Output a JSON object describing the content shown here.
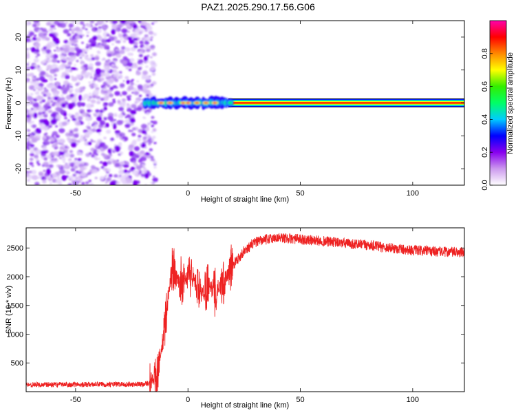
{
  "title": "PAZ1.2025.290.17.56.G06",
  "chart_data": [
    {
      "type": "heatmap",
      "name": "spectrogram",
      "xlabel": "Height of straight line (km)",
      "ylabel": "Frequency (Hz)",
      "xlim": [
        -72,
        123
      ],
      "ylim": [
        -25,
        25
      ],
      "xticks": [
        -50,
        0,
        50,
        100
      ],
      "yticks": [
        -20,
        -10,
        0,
        10,
        20
      ],
      "noise_region_x": [
        -72,
        -17
      ],
      "tone_frequency_hz": 0,
      "transition_region_x": [
        -17,
        18
      ],
      "colorbar": {
        "label": "Normalized spectral amplitude",
        "range": [
          0,
          1
        ],
        "ticks": [
          "0.0",
          "0.2",
          "0.4",
          "0.6",
          "0.8"
        ],
        "colors": [
          "#ffffff",
          "#cc99ee",
          "#8800ee",
          "#0000ff",
          "#00ccff",
          "#00ff66",
          "#33ee00",
          "#ffff00",
          "#ff8800",
          "#ff0000",
          "#ff00aa"
        ]
      }
    },
    {
      "type": "line",
      "name": "snr",
      "xlabel": "Height of straight line (km)",
      "ylabel": "SNR (10 * v/v)",
      "xlim": [
        -72,
        123
      ],
      "ylim": [
        0,
        2850
      ],
      "xticks": [
        -50,
        0,
        50,
        100
      ],
      "yticks": [
        500,
        1000,
        1500,
        2000,
        2500
      ],
      "line_color": "#ee2222",
      "profile": {
        "x": [
          -72,
          -20,
          -17,
          -14,
          -11,
          -9,
          -7,
          -4,
          -2,
          2,
          5,
          7,
          9,
          12,
          15,
          18,
          21,
          25,
          30,
          35,
          40,
          50,
          60,
          70,
          80,
          90,
          100,
          110,
          123
        ],
        "y": [
          120,
          130,
          160,
          280,
          900,
          1600,
          2150,
          1900,
          1950,
          2050,
          1700,
          1750,
          1900,
          1700,
          1900,
          2050,
          2250,
          2450,
          2600,
          2650,
          2680,
          2650,
          2620,
          2580,
          2550,
          2500,
          2460,
          2440,
          2420
        ]
      }
    }
  ]
}
